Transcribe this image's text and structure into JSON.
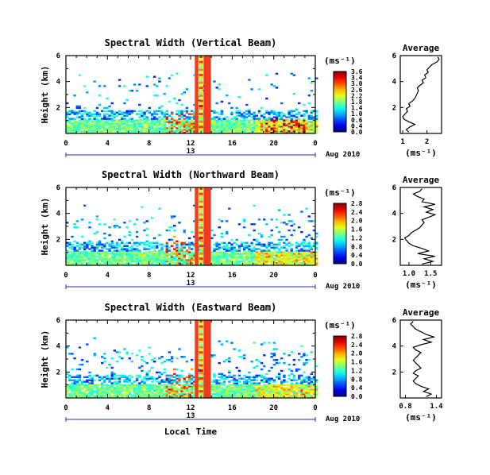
{
  "chart_data": [
    {
      "type": "heatmap",
      "title": "Spectral Width (Vertical Beam)",
      "ylabel": "Height (km)",
      "yticks": [
        "2",
        "4",
        "6"
      ],
      "ylim": [
        0,
        6
      ],
      "xticks": [
        "0",
        "4",
        "8",
        "12",
        "16",
        "20",
        "0"
      ],
      "xlim": [
        0,
        24
      ],
      "day_label": "13",
      "month_label": "Aug 2010",
      "colorbar": {
        "unit": "(ms⁻¹)",
        "ticks": [
          "3.6",
          "3.4",
          "3.0",
          "2.6",
          "2.2",
          "1.8",
          "1.4",
          "1.0",
          "0.6",
          "0.4",
          "0.0"
        ]
      },
      "average": {
        "title": "Average",
        "xlabel": "(ms⁻¹)",
        "xticks": [
          "1",
          "2"
        ],
        "xlim": [
          0.9,
          2.6
        ],
        "yticks": [
          "2",
          "4",
          "6"
        ],
        "profile": [
          [
            0.1,
            1.25
          ],
          [
            0.3,
            1.15
          ],
          [
            0.5,
            1.3
          ],
          [
            0.7,
            1.5
          ],
          [
            0.9,
            1.25
          ],
          [
            1.1,
            1.05
          ],
          [
            1.3,
            1.0
          ],
          [
            1.5,
            1.1
          ],
          [
            1.7,
            1.2
          ],
          [
            1.9,
            1.15
          ],
          [
            2.1,
            1.3
          ],
          [
            2.3,
            1.25
          ],
          [
            2.5,
            1.4
          ],
          [
            2.7,
            1.5
          ],
          [
            2.9,
            1.55
          ],
          [
            3.1,
            1.6
          ],
          [
            3.3,
            1.65
          ],
          [
            3.5,
            1.6
          ],
          [
            3.7,
            1.7
          ],
          [
            3.9,
            1.85
          ],
          [
            4.1,
            1.8
          ],
          [
            4.3,
            1.95
          ],
          [
            4.5,
            1.9
          ],
          [
            4.7,
            2.05
          ],
          [
            4.9,
            2.0
          ],
          [
            5.1,
            2.1
          ],
          [
            5.3,
            2.2
          ],
          [
            5.5,
            2.4
          ],
          [
            5.7,
            2.5
          ],
          [
            5.9,
            2.45
          ]
        ]
      }
    },
    {
      "type": "heatmap",
      "title": "Spectral Width (Northward Beam)",
      "ylabel": "Height (km)",
      "yticks": [
        "2",
        "4",
        "6"
      ],
      "ylim": [
        0,
        6
      ],
      "xticks": [
        "0",
        "4",
        "8",
        "12",
        "16",
        "20",
        "0"
      ],
      "xlim": [
        0,
        24
      ],
      "day_label": "13",
      "month_label": "Aug 2010",
      "colorbar": {
        "unit": "(ms⁻¹)",
        "ticks": [
          "2.8",
          "2.4",
          "2.0",
          "1.6",
          "1.2",
          "0.8",
          "0.4",
          "0.0"
        ]
      },
      "average": {
        "title": "Average",
        "xlabel": "(ms⁻¹)",
        "xticks": [
          "1.0",
          "1.5"
        ],
        "xlim": [
          0.8,
          1.75
        ],
        "yticks": [
          "2",
          "4",
          "6"
        ],
        "profile": [
          [
            0.1,
            1.3
          ],
          [
            0.3,
            1.55
          ],
          [
            0.5,
            1.35
          ],
          [
            0.7,
            1.6
          ],
          [
            0.9,
            1.2
          ],
          [
            1.1,
            1.45
          ],
          [
            1.3,
            1.3
          ],
          [
            1.5,
            1.1
          ],
          [
            1.7,
            1.0
          ],
          [
            1.9,
            0.95
          ],
          [
            2.1,
            0.9
          ],
          [
            2.3,
            1.0
          ],
          [
            2.5,
            1.05
          ],
          [
            2.7,
            1.15
          ],
          [
            2.9,
            1.25
          ],
          [
            3.1,
            1.3
          ],
          [
            3.3,
            1.35
          ],
          [
            3.5,
            1.3
          ],
          [
            3.7,
            1.45
          ],
          [
            3.9,
            1.6
          ],
          [
            4.1,
            1.4
          ],
          [
            4.3,
            1.55
          ],
          [
            4.5,
            1.35
          ],
          [
            4.7,
            1.6
          ],
          [
            4.9,
            1.3
          ],
          [
            5.1,
            1.35
          ],
          [
            5.3,
            1.2
          ],
          [
            5.5,
            1.1
          ],
          [
            5.7,
            1.25
          ],
          [
            5.9,
            1.3
          ]
        ]
      }
    },
    {
      "type": "heatmap",
      "title": "Spectral Width (Eastward Beam)",
      "ylabel": "Height (km)",
      "yticks": [
        "2",
        "4",
        "6"
      ],
      "ylim": [
        0,
        6
      ],
      "xticks": [
        "0",
        "4",
        "8",
        "12",
        "16",
        "20",
        "0"
      ],
      "xlim": [
        0,
        24
      ],
      "day_label": "13",
      "month_label": "Aug 2010",
      "xlabel": "Local Time",
      "colorbar": {
        "unit": "(ms⁻¹)",
        "ticks": [
          "2.8",
          "2.4",
          "2.0",
          "1.6",
          "1.2",
          "0.8",
          "0.4",
          "0.0"
        ]
      },
      "average": {
        "title": "Average",
        "xlabel": "(ms⁻¹)",
        "xticks": [
          "0.8",
          "1.4"
        ],
        "xlim": [
          0.7,
          1.5
        ],
        "yticks": [
          "2",
          "4",
          "6"
        ],
        "profile": [
          [
            0.1,
            1.2
          ],
          [
            0.3,
            1.3
          ],
          [
            0.5,
            1.15
          ],
          [
            0.7,
            1.25
          ],
          [
            0.9,
            1.1
          ],
          [
            1.1,
            1.0
          ],
          [
            1.3,
            0.95
          ],
          [
            1.5,
            1.0
          ],
          [
            1.7,
            1.05
          ],
          [
            1.9,
            0.95
          ],
          [
            2.1,
            1.0
          ],
          [
            2.3,
            1.1
          ],
          [
            2.5,
            1.05
          ],
          [
            2.7,
            1.0
          ],
          [
            2.9,
            0.95
          ],
          [
            3.1,
            1.0
          ],
          [
            3.3,
            1.05
          ],
          [
            3.5,
            1.1
          ],
          [
            3.7,
            1.0
          ],
          [
            3.9,
            0.95
          ],
          [
            4.1,
            1.1
          ],
          [
            4.3,
            1.3
          ],
          [
            4.5,
            1.15
          ],
          [
            4.7,
            1.35
          ],
          [
            4.9,
            1.2
          ],
          [
            5.1,
            1.1
          ],
          [
            5.3,
            1.0
          ],
          [
            5.5,
            0.95
          ],
          [
            5.7,
            0.9
          ],
          [
            5.9,
            0.95
          ]
        ]
      }
    }
  ]
}
